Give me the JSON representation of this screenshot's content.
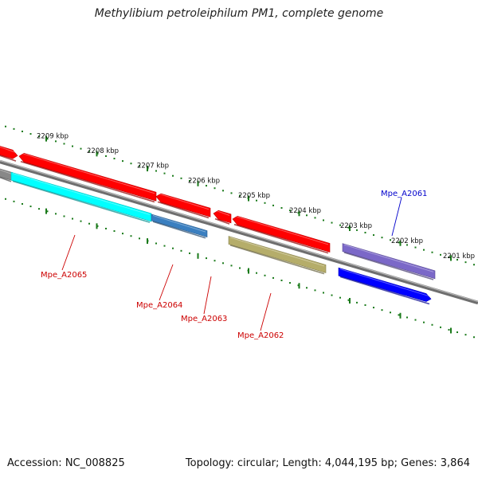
{
  "title": "Methylibium petroleiphilum PM1, complete genome",
  "footer": {
    "accession": "Accession: NC_008825",
    "summary": "Topology: circular; Length: 4,044,195 bp; Genes: 3,864"
  },
  "colors": {
    "backbone": "#7a7a7a",
    "ticks": "#1a7a1a",
    "forward_gene": "#ff0000",
    "label_red": "#cc0000",
    "label_blue": "#0000cc"
  },
  "scale_kbp": [
    2209,
    2208,
    2207,
    2206,
    2205,
    2204,
    2203,
    2202,
    2201
  ],
  "scale_labels": [
    "2209 kbp",
    "2208 kbp",
    "2207 kbp",
    "2206 kbp",
    "2205 kbp",
    "2204 kbp",
    "2203 kbp",
    "2202 kbp",
    "2201 kbp"
  ],
  "genes": [
    {
      "name": "",
      "strand": "+",
      "color": "#ff0000"
    },
    {
      "name": "",
      "strand": "+",
      "color": "#ff0000"
    },
    {
      "name": "",
      "strand": "+",
      "color": "#ff0000"
    },
    {
      "name": "",
      "strand": "+",
      "color": "#ff0000"
    },
    {
      "name": "",
      "strand": "+",
      "color": "#ff0000"
    },
    {
      "name": "Mpe_A2061",
      "strand": "+",
      "color": "#7b68c8"
    },
    {
      "name": "",
      "strand": "-",
      "color": "#888888"
    },
    {
      "name": "Mpe_A2065",
      "strand": "-",
      "color": "#00ffff"
    },
    {
      "name": "Mpe_A2064",
      "strand": "-",
      "color": "#3a7fc0"
    },
    {
      "name": "Mpe_A2062",
      "strand": "-",
      "color": "#b5ad6a"
    },
    {
      "name": "",
      "strand": "-",
      "color": "#0000ff"
    }
  ],
  "gene_labels": [
    "Mpe_A2061",
    "Mpe_A2065",
    "Mpe_A2064",
    "Mpe_A2063",
    "Mpe_A2062"
  ]
}
